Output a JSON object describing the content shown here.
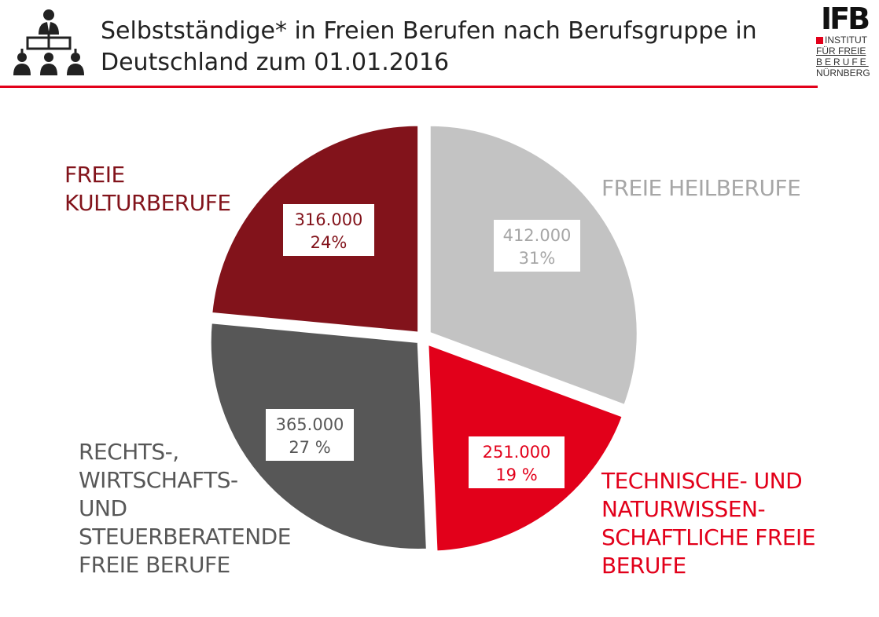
{
  "header": {
    "title_line1": "Selbstständige* in Freien Berufen nach Berufsgruppe in",
    "title_line2": "Deutschland zum 01.01.2016",
    "icon": "organization-chart-icon"
  },
  "logo": {
    "mark": "IFB",
    "line1": "INSTITUT",
    "line2": "FÜR FREIE",
    "line3": "BERUFE",
    "line4": "NÜRNBERG"
  },
  "colors": {
    "accent": "#e2001a",
    "heil": "#c3c3c3",
    "technik": "#e2001a",
    "recht": "#575757",
    "kultur": "#82131b"
  },
  "chart_data": {
    "type": "pie",
    "title": "Selbstständige* in Freien Berufen nach Berufsgruppe in Deutschland zum 01.01.2016",
    "slices": [
      {
        "label_lines": [
          "FREIE HEILBERUFE"
        ],
        "value": 412000,
        "value_text": "412.000",
        "percent_text": "31%",
        "color": "#c3c3c3",
        "text_color": "#a6a6a6"
      },
      {
        "label_lines": [
          "TECHNISCHE- UND",
          "NATURWISSEN-",
          "SCHAFTLICHE FREIE",
          "BERUFE"
        ],
        "value": 251000,
        "value_text": "251.000",
        "percent_text": "19 %",
        "color": "#e2001a",
        "text_color": "#e2001a"
      },
      {
        "label_lines": [
          "RECHTS-,",
          "WIRTSCHAFTS-",
          "UND",
          "STEUERBERATENDE",
          "FREIE BERUFE"
        ],
        "value": 365000,
        "value_text": "365.000",
        "percent_text": "27 %",
        "color": "#575757",
        "text_color": "#575757"
      },
      {
        "label_lines": [
          "FREIE",
          "KULTURBERUFE"
        ],
        "value": 316000,
        "value_text": "316.000",
        "percent_text": "24%",
        "color": "#82131b",
        "text_color": "#82131b"
      }
    ]
  }
}
